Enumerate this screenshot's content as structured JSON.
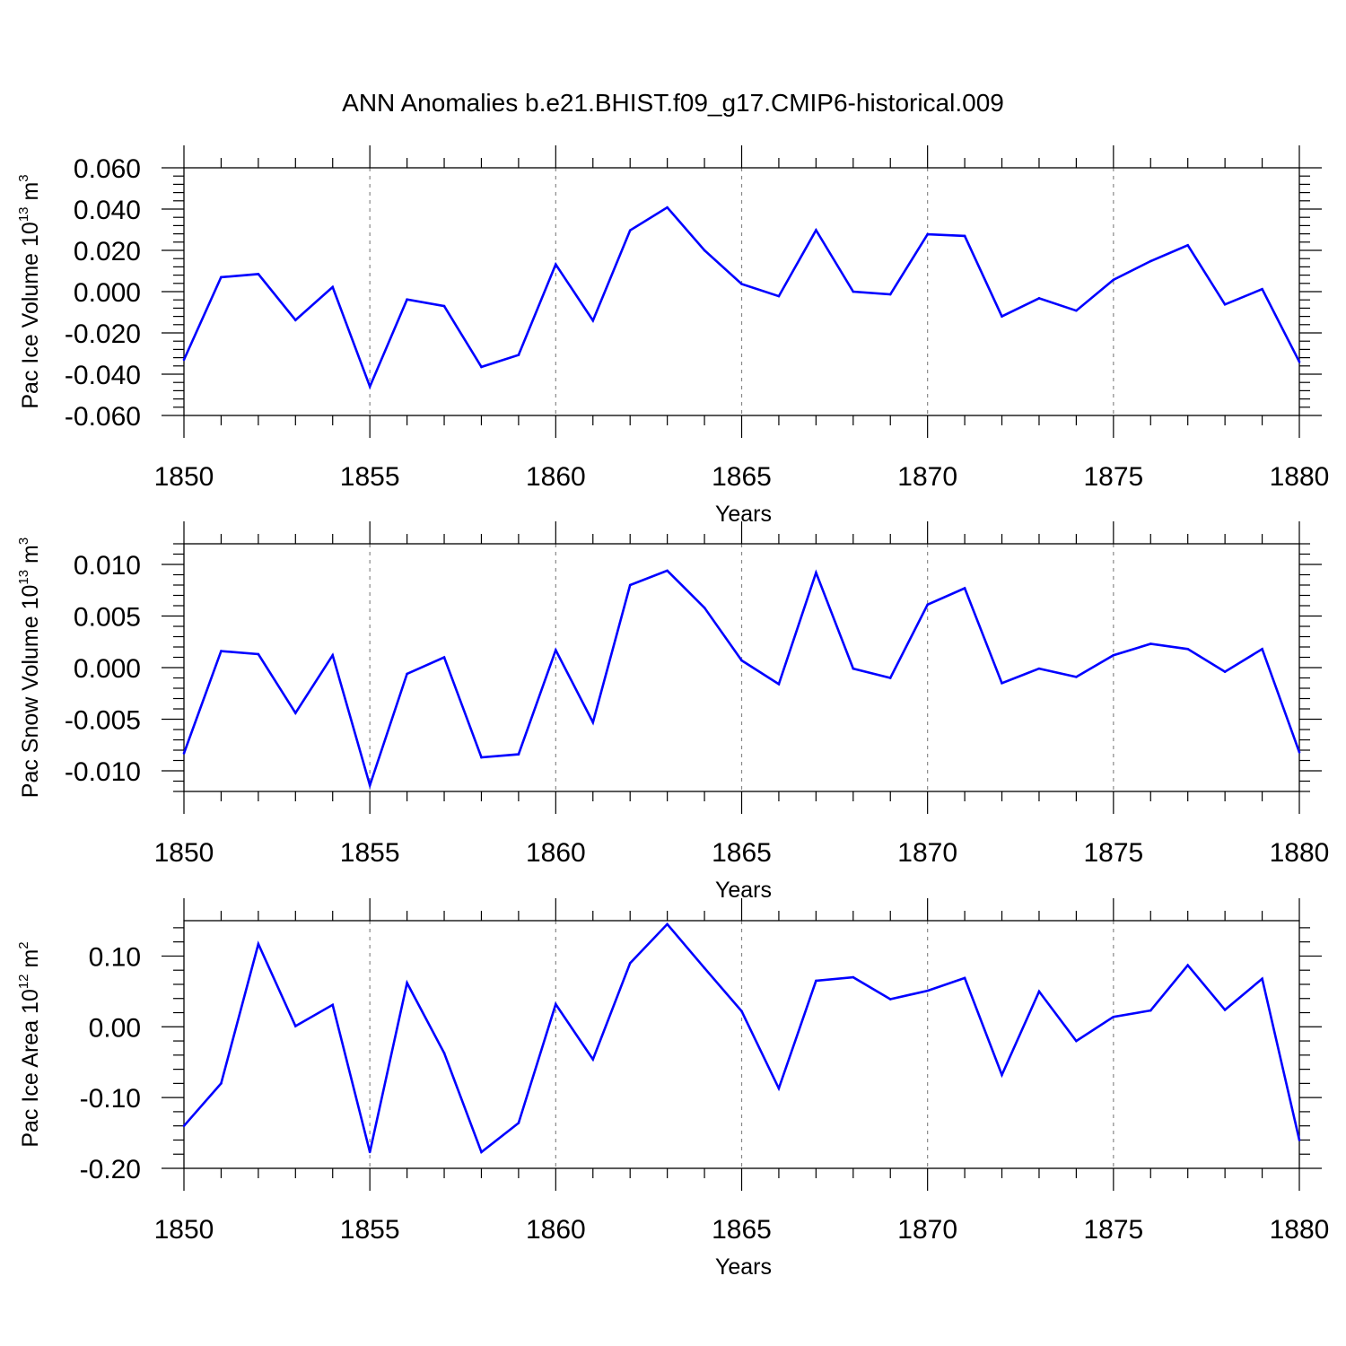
{
  "title": "ANN Anomalies b.e21.BHIST.f09_g17.CMIP6-historical.009",
  "colors": {
    "line": "#0000ff",
    "axis": "#000000",
    "grid": "#888888"
  },
  "chart_data": [
    {
      "type": "line",
      "ylabel": "Pac Ice Volume 10",
      "ylabel_exp": "13",
      "ylabel_unit": " m",
      "ylabel_unit_exp": "3",
      "xlabel": "Years",
      "xlim": [
        1850,
        1880
      ],
      "ylim": [
        -0.06,
        0.06
      ],
      "x_ticks": [
        1850,
        1855,
        1860,
        1865,
        1870,
        1875,
        1880
      ],
      "x_tick_labels": [
        "1850",
        "1855",
        "1860",
        "1865",
        "1870",
        "1875",
        "1880"
      ],
      "y_ticks": [
        -0.06,
        -0.04,
        -0.02,
        0.0,
        0.02,
        0.04,
        0.06
      ],
      "y_tick_labels": [
        "-0.060",
        "-0.040",
        "-0.020",
        "0.000",
        "0.020",
        "0.040",
        "0.060"
      ],
      "x_grid": "dashed at labeled years",
      "x": [
        1850,
        1851,
        1852,
        1853,
        1854,
        1855,
        1856,
        1857,
        1858,
        1859,
        1860,
        1861,
        1862,
        1863,
        1864,
        1865,
        1866,
        1867,
        1868,
        1869,
        1870,
        1871,
        1872,
        1873,
        1874,
        1875,
        1876,
        1877,
        1878,
        1879,
        1880
      ],
      "values": [
        -0.033,
        0.007,
        0.0085,
        -0.0138,
        0.0022,
        -0.046,
        -0.0038,
        -0.007,
        -0.0365,
        -0.0307,
        0.0132,
        -0.014,
        0.0297,
        0.0408,
        0.02,
        0.0037,
        -0.0022,
        0.0298,
        0.0,
        -0.0013,
        0.0278,
        0.027,
        -0.012,
        -0.0032,
        -0.0092,
        0.0057,
        0.0148,
        0.0225,
        -0.0062,
        0.0012,
        -0.034
      ]
    },
    {
      "type": "line",
      "ylabel": "Pac Snow Volume 10",
      "ylabel_exp": "13",
      "ylabel_unit": " m",
      "ylabel_unit_exp": "3",
      "xlabel": "Years",
      "xlim": [
        1850,
        1880
      ],
      "ylim": [
        -0.012,
        0.012
      ],
      "x_ticks": [
        1850,
        1855,
        1860,
        1865,
        1870,
        1875,
        1880
      ],
      "x_tick_labels": [
        "1850",
        "1855",
        "1860",
        "1865",
        "1870",
        "1875",
        "1880"
      ],
      "y_ticks": [
        -0.01,
        -0.005,
        0.0,
        0.005,
        0.01
      ],
      "y_tick_labels": [
        "-0.010",
        "-0.005",
        "0.000",
        "0.005",
        "0.010"
      ],
      "x_grid": "dashed at labeled years",
      "x": [
        1850,
        1851,
        1852,
        1853,
        1854,
        1855,
        1856,
        1857,
        1858,
        1859,
        1860,
        1861,
        1862,
        1863,
        1864,
        1865,
        1866,
        1867,
        1868,
        1869,
        1870,
        1871,
        1872,
        1873,
        1874,
        1875,
        1876,
        1877,
        1878,
        1879,
        1880
      ],
      "values": [
        -0.0083,
        0.0016,
        0.0013,
        -0.0044,
        0.0012,
        -0.0114,
        -0.0006,
        0.001,
        -0.0087,
        -0.0084,
        0.0017,
        -0.0053,
        0.008,
        0.0094,
        0.0058,
        0.0007,
        -0.0016,
        0.0092,
        -0.0001,
        -0.001,
        0.0061,
        0.0077,
        -0.0015,
        -0.0001,
        -0.0009,
        0.0012,
        0.0023,
        0.0018,
        -0.0004,
        0.0018,
        -0.0082
      ]
    },
    {
      "type": "line",
      "ylabel": "Pac Ice Area 10",
      "ylabel_exp": "12",
      "ylabel_unit": " m",
      "ylabel_unit_exp": "2",
      "xlabel": "Years",
      "xlim": [
        1850,
        1880
      ],
      "ylim": [
        -0.2,
        0.15
      ],
      "x_ticks": [
        1850,
        1855,
        1860,
        1865,
        1870,
        1875,
        1880
      ],
      "x_tick_labels": [
        "1850",
        "1855",
        "1860",
        "1865",
        "1870",
        "1875",
        "1880"
      ],
      "y_ticks": [
        -0.2,
        -0.1,
        0.0,
        0.1
      ],
      "y_tick_labels": [
        "-0.20",
        "-0.10",
        "0.00",
        "0.10"
      ],
      "x_grid": "dashed at labeled years",
      "x": [
        1850,
        1851,
        1852,
        1853,
        1854,
        1855,
        1856,
        1857,
        1858,
        1859,
        1860,
        1861,
        1862,
        1863,
        1864,
        1865,
        1866,
        1867,
        1868,
        1869,
        1870,
        1871,
        1872,
        1873,
        1874,
        1875,
        1876,
        1877,
        1878,
        1879,
        1880
      ],
      "values": [
        -0.14,
        -0.08,
        0.117,
        0.001,
        0.031,
        -0.177,
        0.062,
        -0.037,
        -0.177,
        -0.136,
        0.032,
        -0.046,
        0.09,
        0.145,
        0.083,
        0.022,
        -0.087,
        0.065,
        0.07,
        0.039,
        0.051,
        0.069,
        -0.068,
        0.05,
        -0.02,
        0.014,
        0.023,
        0.087,
        0.024,
        0.068,
        -0.16
      ]
    }
  ]
}
